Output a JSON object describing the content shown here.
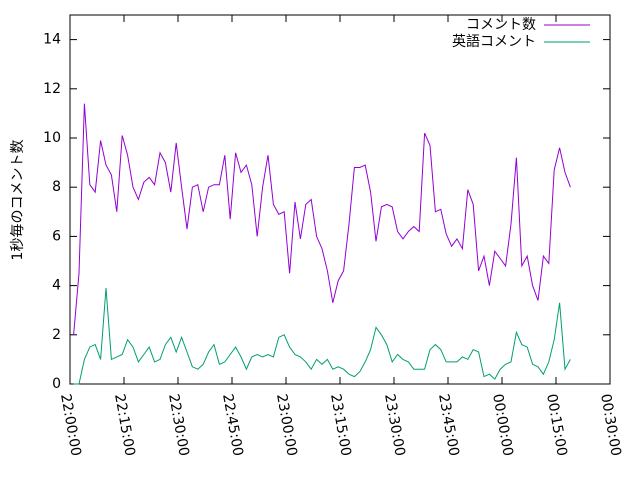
{
  "chart_data": {
    "type": "line",
    "y_label": "1秒毎のコメント数",
    "x": [
      "22:01:00",
      "22:02:30",
      "22:04:00",
      "22:05:30",
      "22:07:00",
      "22:08:30",
      "22:10:00",
      "22:11:30",
      "22:13:00",
      "22:14:30",
      "22:16:00",
      "22:17:30",
      "22:19:00",
      "22:20:30",
      "22:22:00",
      "22:23:30",
      "22:25:00",
      "22:26:30",
      "22:28:00",
      "22:29:30",
      "22:31:00",
      "22:32:30",
      "22:34:00",
      "22:35:30",
      "22:37:00",
      "22:38:30",
      "22:40:00",
      "22:41:30",
      "22:43:00",
      "22:44:30",
      "22:46:00",
      "22:47:30",
      "22:49:00",
      "22:50:30",
      "22:52:00",
      "22:53:30",
      "22:55:00",
      "22:56:30",
      "22:58:00",
      "22:59:30",
      "23:01:00",
      "23:02:30",
      "23:04:00",
      "23:05:30",
      "23:07:00",
      "23:08:30",
      "23:10:00",
      "23:11:30",
      "23:13:00",
      "23:14:30",
      "23:16:00",
      "23:17:30",
      "23:19:00",
      "23:20:30",
      "23:22:00",
      "23:23:30",
      "23:25:00",
      "23:26:30",
      "23:28:00",
      "23:29:30",
      "23:31:00",
      "23:32:30",
      "23:34:00",
      "23:35:30",
      "23:37:00",
      "23:38:30",
      "23:40:00",
      "23:41:30",
      "23:43:00",
      "23:44:30",
      "23:46:00",
      "23:47:30",
      "23:49:00",
      "23:50:30",
      "23:52:00",
      "23:53:30",
      "23:55:00",
      "23:56:30",
      "23:58:00",
      "23:59:30",
      "00:01:00",
      "00:02:30",
      "00:04:00",
      "00:05:30",
      "00:07:00",
      "00:08:30",
      "00:10:00",
      "00:11:30",
      "00:13:00",
      "00:14:30",
      "00:16:00",
      "00:17:30",
      "00:19:00"
    ],
    "series": [
      {
        "name": "コメント数",
        "color": "#9400d3",
        "values": [
          2.0,
          4.5,
          11.4,
          8.1,
          7.8,
          9.9,
          8.9,
          8.5,
          7.0,
          10.1,
          9.3,
          8.0,
          7.5,
          8.2,
          8.4,
          8.1,
          9.4,
          9.0,
          7.8,
          9.8,
          8.0,
          6.3,
          8.0,
          8.1,
          7.0,
          8.0,
          8.1,
          8.1,
          9.3,
          6.7,
          9.4,
          8.6,
          8.9,
          8.1,
          6.0,
          8.0,
          9.3,
          7.3,
          6.9,
          7.0,
          4.5,
          7.4,
          5.9,
          7.3,
          7.5,
          6.0,
          5.5,
          4.6,
          3.3,
          4.2,
          4.6,
          6.5,
          8.8,
          8.8,
          8.9,
          7.8,
          5.8,
          7.2,
          7.3,
          7.2,
          6.2,
          5.9,
          6.2,
          6.4,
          6.2,
          10.2,
          9.7,
          7.0,
          7.1,
          6.1,
          5.6,
          5.9,
          5.5,
          7.9,
          7.3,
          4.6,
          5.2,
          4.0,
          5.4,
          5.1,
          4.8,
          6.5,
          9.2,
          4.8,
          5.2,
          4.0,
          3.4,
          5.2,
          4.9,
          8.7,
          9.6,
          8.6,
          8.0
        ]
      },
      {
        "name": "英語コメント",
        "color": "#009e73",
        "values": [
          0,
          0,
          1.0,
          1.5,
          1.6,
          1.0,
          3.9,
          1.0,
          1.1,
          1.2,
          1.8,
          1.5,
          0.9,
          1.2,
          1.5,
          0.9,
          1.0,
          1.6,
          1.9,
          1.3,
          1.9,
          1.3,
          0.7,
          0.6,
          0.8,
          1.3,
          1.6,
          0.8,
          0.9,
          1.2,
          1.5,
          1.1,
          0.6,
          1.1,
          1.2,
          1.1,
          1.2,
          1.1,
          1.9,
          2.0,
          1.5,
          1.2,
          1.1,
          0.9,
          0.6,
          1.0,
          0.8,
          1.0,
          0.6,
          0.7,
          0.6,
          0.4,
          0.3,
          0.5,
          0.9,
          1.4,
          2.3,
          2.0,
          1.6,
          0.9,
          1.2,
          1.0,
          0.9,
          0.6,
          0.6,
          0.6,
          1.4,
          1.6,
          1.4,
          0.9,
          0.9,
          0.9,
          1.1,
          1.0,
          1.4,
          1.3,
          0.3,
          0.4,
          0.2,
          0.6,
          0.8,
          0.9,
          2.1,
          1.6,
          1.5,
          0.8,
          0.7,
          0.4,
          0.9,
          1.8,
          3.3,
          0.6,
          1.0
        ]
      }
    ],
    "xlim": [
      "22:00:00",
      "00:30:00"
    ],
    "xticks": [
      "22:00:00",
      "22:15:00",
      "22:30:00",
      "22:45:00",
      "23:00:00",
      "23:15:00",
      "23:30:00",
      "23:45:00",
      "00:00:00",
      "00:15:00",
      "00:30:00"
    ],
    "ylim": [
      0,
      15
    ],
    "yticks": [
      0,
      2,
      4,
      6,
      8,
      10,
      12,
      14
    ],
    "legend": "top-right",
    "grid": false
  }
}
